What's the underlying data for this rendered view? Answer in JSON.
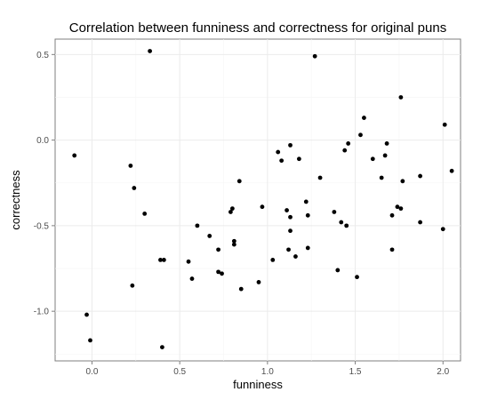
{
  "chart_data": {
    "type": "scatter",
    "title": "Correlation between funniness and correctness for original puns",
    "xlabel": "funniness",
    "ylabel": "correctness",
    "xlim": [
      -0.21,
      2.1
    ],
    "ylim": [
      -1.29,
      0.59
    ],
    "x_ticks": [
      0.0,
      0.5,
      1.0,
      1.5,
      2.0
    ],
    "x_tick_labels": [
      "0.0",
      "0.5",
      "1.0",
      "1.5",
      "2.0"
    ],
    "y_ticks": [
      -1.0,
      -0.5,
      0.0,
      0.5
    ],
    "y_tick_labels": [
      "-1.0",
      "-0.5",
      "0.0",
      "0.5"
    ],
    "grid": true,
    "point_color": "#000000",
    "grid_color": "#ebebeb",
    "panel_border_color": "#7f7f7f",
    "points": [
      {
        "x": -0.1,
        "y": -0.09
      },
      {
        "x": -0.03,
        "y": -1.02
      },
      {
        "x": -0.01,
        "y": -1.17
      },
      {
        "x": 0.22,
        "y": -0.15
      },
      {
        "x": 0.24,
        "y": -0.28
      },
      {
        "x": 0.23,
        "y": -0.85
      },
      {
        "x": 0.3,
        "y": -0.43
      },
      {
        "x": 0.33,
        "y": 0.52
      },
      {
        "x": 0.39,
        "y": -0.7
      },
      {
        "x": 0.41,
        "y": -0.7
      },
      {
        "x": 0.4,
        "y": -1.21
      },
      {
        "x": 0.55,
        "y": -0.71
      },
      {
        "x": 0.57,
        "y": -0.81
      },
      {
        "x": 0.6,
        "y": -0.5
      },
      {
        "x": 0.67,
        "y": -0.56
      },
      {
        "x": 0.72,
        "y": -0.64
      },
      {
        "x": 0.72,
        "y": -0.77
      },
      {
        "x": 0.74,
        "y": -0.78
      },
      {
        "x": 0.79,
        "y": -0.42
      },
      {
        "x": 0.8,
        "y": -0.4
      },
      {
        "x": 0.81,
        "y": -0.59
      },
      {
        "x": 0.81,
        "y": -0.61
      },
      {
        "x": 0.84,
        "y": -0.24
      },
      {
        "x": 0.85,
        "y": -0.87
      },
      {
        "x": 0.95,
        "y": -0.83
      },
      {
        "x": 0.97,
        "y": -0.39
      },
      {
        "x": 1.03,
        "y": -0.7
      },
      {
        "x": 1.06,
        "y": -0.07
      },
      {
        "x": 1.08,
        "y": -0.12
      },
      {
        "x": 1.11,
        "y": -0.41
      },
      {
        "x": 1.12,
        "y": -0.64
      },
      {
        "x": 1.13,
        "y": -0.03
      },
      {
        "x": 1.13,
        "y": -0.45
      },
      {
        "x": 1.13,
        "y": -0.53
      },
      {
        "x": 1.16,
        "y": -0.68
      },
      {
        "x": 1.18,
        "y": -0.11
      },
      {
        "x": 1.22,
        "y": -0.36
      },
      {
        "x": 1.23,
        "y": -0.44
      },
      {
        "x": 1.23,
        "y": -0.63
      },
      {
        "x": 1.27,
        "y": 0.49
      },
      {
        "x": 1.3,
        "y": -0.22
      },
      {
        "x": 1.38,
        "y": -0.42
      },
      {
        "x": 1.4,
        "y": -0.76
      },
      {
        "x": 1.42,
        "y": -0.48
      },
      {
        "x": 1.44,
        "y": -0.06
      },
      {
        "x": 1.45,
        "y": -0.5
      },
      {
        "x": 1.46,
        "y": -0.02
      },
      {
        "x": 1.51,
        "y": -0.8
      },
      {
        "x": 1.53,
        "y": 0.03
      },
      {
        "x": 1.55,
        "y": 0.13
      },
      {
        "x": 1.6,
        "y": -0.11
      },
      {
        "x": 1.65,
        "y": -0.22
      },
      {
        "x": 1.67,
        "y": -0.09
      },
      {
        "x": 1.68,
        "y": -0.02
      },
      {
        "x": 1.71,
        "y": -0.44
      },
      {
        "x": 1.71,
        "y": -0.64
      },
      {
        "x": 1.74,
        "y": -0.39
      },
      {
        "x": 1.76,
        "y": 0.25
      },
      {
        "x": 1.76,
        "y": -0.4
      },
      {
        "x": 1.77,
        "y": -0.24
      },
      {
        "x": 1.87,
        "y": -0.21
      },
      {
        "x": 1.87,
        "y": -0.48
      },
      {
        "x": 2.0,
        "y": -0.52
      },
      {
        "x": 2.01,
        "y": 0.09
      },
      {
        "x": 2.05,
        "y": -0.18
      }
    ]
  }
}
